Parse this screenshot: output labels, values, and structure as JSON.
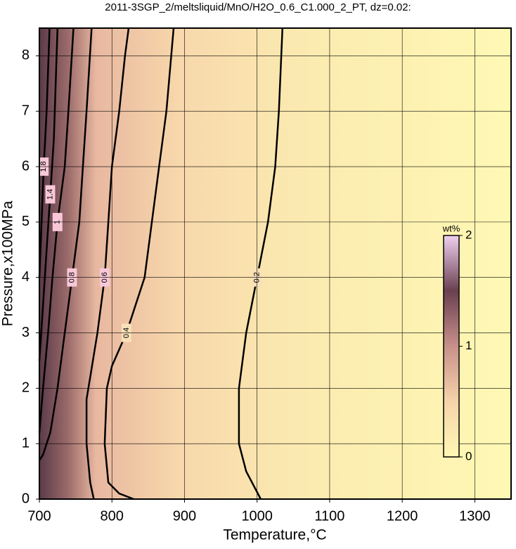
{
  "chart_data": {
    "type": "contour",
    "title": "2011-3SGP_2/meltsliquid/MnO/H2O_0.6_C1.000_2_PT, dz=0.02:",
    "x_label": "Temperature,°C",
    "y_label": "Pressure,x100MPa",
    "xlim": [
      700,
      1350
    ],
    "ylim": [
      0,
      8.5
    ],
    "xticks": [
      700,
      800,
      900,
      1000,
      1100,
      1200,
      1300
    ],
    "yticks": [
      0,
      1,
      2,
      3,
      4,
      5,
      6,
      7,
      8
    ],
    "grid": true,
    "contours": [
      {
        "level": 0.2,
        "x": [
          1005,
          985,
          975,
          975,
          985,
          1000,
          1015,
          1025,
          1030,
          1035
        ],
        "y": [
          0,
          0.5,
          1,
          2,
          3,
          4,
          5,
          6,
          7,
          8.5
        ]
      },
      {
        "level": 0.4,
        "x": [
          830,
          810,
          795,
          790,
          793,
          800,
          820,
          845,
          855,
          865,
          875,
          885
        ],
        "y": [
          0,
          0.1,
          0.3,
          1,
          2,
          2.4,
          3,
          4,
          5,
          6,
          7,
          8.5
        ]
      },
      {
        "level": 0.6,
        "x": [
          775,
          770,
          765,
          765,
          770,
          780,
          790,
          795,
          800,
          810,
          818,
          823
        ],
        "y": [
          0,
          0.3,
          1,
          1.8,
          2.2,
          3,
          4,
          5,
          6,
          7,
          8,
          8.5
        ]
      },
      {
        "level": 0.8,
        "x": [
          700,
          705,
          715,
          725,
          735,
          745,
          755,
          760,
          765,
          772
        ],
        "y": [
          0.7,
          0.8,
          1.2,
          2,
          3,
          4,
          5,
          6,
          7,
          8.5
        ]
      },
      {
        "level": 1,
        "x": [
          700,
          705,
          712,
          718,
          725,
          735,
          740,
          747
        ],
        "y": [
          1.2,
          2,
          3,
          4,
          5,
          6,
          7,
          8.5
        ]
      },
      {
        "level": 1.4,
        "x": [
          700,
          705,
          710,
          715,
          720,
          725
        ],
        "y": [
          2.5,
          3.5,
          4.5,
          5.5,
          6.5,
          8.5
        ]
      },
      {
        "level": 1.8,
        "x": [
          700,
          703,
          706,
          710,
          714
        ],
        "y": [
          4,
          5,
          6,
          7,
          8.5
        ]
      }
    ],
    "colorbar": {
      "label": "wt%",
      "lim": [
        0,
        2
      ],
      "ticks": [
        0,
        1,
        2
      ],
      "colors": [
        "#fff8b4",
        "#f6d4aa",
        "#c8908a",
        "#6a4050",
        "#f0d0f0"
      ]
    }
  }
}
